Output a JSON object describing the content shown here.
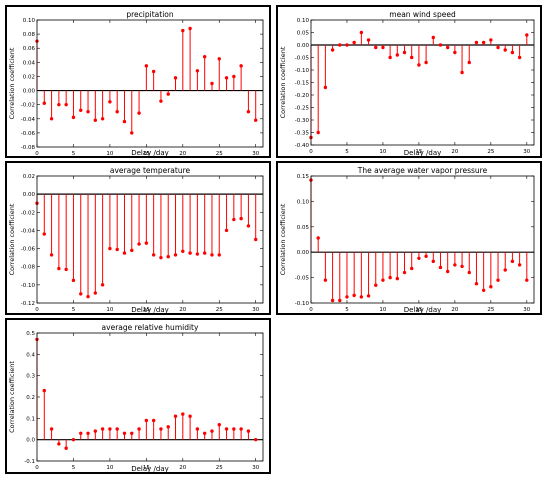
{
  "chart_data": [
    {
      "type": "stem",
      "title": "precipitation",
      "xlabel": "Delay /day",
      "ylabel": "Correlation coefficient",
      "xlim": [
        0,
        31
      ],
      "ylim": [
        -0.08,
        0.1
      ],
      "xticks": [
        0,
        5,
        10,
        15,
        20,
        25,
        30
      ],
      "yticks": [
        -0.08,
        -0.06,
        -0.04,
        -0.02,
        0.0,
        0.02,
        0.04,
        0.06,
        0.08,
        0.1
      ],
      "ytick_labels": [
        "-0.08",
        "-0.06",
        "-0.04",
        "-0.02",
        "0.00",
        "0.02",
        "0.04",
        "0.06",
        "0.08",
        "0.10"
      ],
      "x": [
        0,
        1,
        2,
        3,
        4,
        5,
        6,
        7,
        8,
        9,
        10,
        11,
        12,
        13,
        14,
        15,
        16,
        17,
        18,
        19,
        20,
        21,
        22,
        23,
        24,
        25,
        26,
        27,
        28,
        29,
        30
      ],
      "values": [
        0.07,
        -0.018,
        -0.04,
        -0.02,
        -0.02,
        -0.038,
        -0.028,
        -0.03,
        -0.042,
        -0.04,
        -0.016,
        -0.03,
        -0.044,
        -0.06,
        -0.032,
        0.035,
        0.027,
        -0.015,
        -0.005,
        0.018,
        0.085,
        0.088,
        0.028,
        0.048,
        0.01,
        0.045,
        0.018,
        0.02,
        0.035,
        -0.03,
        -0.042
      ],
      "color": "#ff0000"
    },
    {
      "type": "stem",
      "title": "mean wind speed",
      "xlabel": "Delay /day",
      "ylabel": "Correlation coefficient",
      "xlim": [
        0,
        31
      ],
      "ylim": [
        -0.4,
        0.1
      ],
      "xticks": [
        0,
        5,
        10,
        15,
        20,
        25,
        30
      ],
      "yticks": [
        -0.4,
        -0.35,
        -0.3,
        -0.25,
        -0.2,
        -0.15,
        -0.1,
        -0.05,
        0.0,
        0.05,
        0.1
      ],
      "ytick_labels": [
        "-0.40",
        "-0.35",
        "-0.30",
        "-0.25",
        "-0.20",
        "-0.15",
        "-0.10",
        "-0.05",
        "0.00",
        "0.05",
        "0.10"
      ],
      "x": [
        0,
        1,
        2,
        3,
        4,
        5,
        6,
        7,
        8,
        9,
        10,
        11,
        12,
        13,
        14,
        15,
        16,
        17,
        18,
        19,
        20,
        21,
        22,
        23,
        24,
        25,
        26,
        27,
        28,
        29,
        30
      ],
      "values": [
        -0.37,
        -0.35,
        -0.17,
        -0.02,
        0.0,
        0.0,
        0.01,
        0.05,
        0.02,
        -0.01,
        -0.01,
        -0.05,
        -0.04,
        -0.03,
        -0.05,
        -0.08,
        -0.07,
        0.03,
        0.0,
        -0.01,
        -0.03,
        -0.11,
        -0.07,
        0.01,
        0.01,
        0.02,
        -0.01,
        -0.02,
        -0.03,
        -0.05,
        0.04
      ],
      "color": "#ff0000"
    },
    {
      "type": "stem",
      "title": "average temperature",
      "xlabel": "Delay /day",
      "ylabel": "Correlation coefficient",
      "xlim": [
        0,
        31
      ],
      "ylim": [
        -0.12,
        0.02
      ],
      "xticks": [
        0,
        5,
        10,
        15,
        20,
        25,
        30
      ],
      "yticks": [
        -0.12,
        -0.1,
        -0.08,
        -0.06,
        -0.04,
        -0.02,
        0.0,
        0.02
      ],
      "ytick_labels": [
        "-0.12",
        "-0.10",
        "-0.08",
        "-0.06",
        "-0.04",
        "-0.02",
        "0.00",
        "0.02"
      ],
      "x": [
        0,
        1,
        2,
        3,
        4,
        5,
        6,
        7,
        8,
        9,
        10,
        11,
        12,
        13,
        14,
        15,
        16,
        17,
        18,
        19,
        20,
        21,
        22,
        23,
        24,
        25,
        26,
        27,
        28,
        29,
        30
      ],
      "values": [
        -0.01,
        -0.044,
        -0.067,
        -0.082,
        -0.083,
        -0.095,
        -0.11,
        -0.113,
        -0.109,
        -0.1,
        -0.06,
        -0.061,
        -0.065,
        -0.062,
        -0.055,
        -0.054,
        -0.067,
        -0.07,
        -0.069,
        -0.067,
        -0.063,
        -0.065,
        -0.066,
        -0.065,
        -0.067,
        -0.067,
        -0.04,
        -0.028,
        -0.027,
        -0.035,
        -0.05
      ],
      "color": "#ff0000"
    },
    {
      "type": "stem",
      "title": "The average water vapor pressure",
      "xlabel": "Delay /day",
      "ylabel": "Correlation coefficient",
      "xlim": [
        0,
        31
      ],
      "ylim": [
        -0.1,
        0.15
      ],
      "xticks": [
        0,
        5,
        10,
        15,
        20,
        25,
        30
      ],
      "yticks": [
        -0.1,
        -0.05,
        0.0,
        0.05,
        0.1,
        0.15
      ],
      "ytick_labels": [
        "-0.10",
        "-0.05",
        "0.00",
        "0.05",
        "0.10",
        "0.15"
      ],
      "x": [
        0,
        1,
        2,
        3,
        4,
        5,
        6,
        7,
        8,
        9,
        10,
        11,
        12,
        13,
        14,
        15,
        16,
        17,
        18,
        19,
        20,
        21,
        22,
        23,
        24,
        25,
        26,
        27,
        28,
        29,
        30
      ],
      "values": [
        0.142,
        0.028,
        -0.055,
        -0.095,
        -0.095,
        -0.088,
        -0.085,
        -0.088,
        -0.086,
        -0.065,
        -0.055,
        -0.05,
        -0.052,
        -0.04,
        -0.032,
        -0.012,
        -0.008,
        -0.018,
        -0.03,
        -0.038,
        -0.025,
        -0.028,
        -0.04,
        -0.062,
        -0.075,
        -0.068,
        -0.055,
        -0.035,
        -0.018,
        -0.025,
        -0.055
      ],
      "color": "#ff0000"
    },
    {
      "type": "stem",
      "title": "average relative humidity",
      "xlabel": "Delay /day",
      "ylabel": "Correlation coefficient",
      "xlim": [
        0,
        31
      ],
      "ylim": [
        -0.1,
        0.5
      ],
      "xticks": [
        0,
        5,
        10,
        15,
        20,
        25,
        30
      ],
      "yticks": [
        -0.1,
        0.0,
        0.1,
        0.2,
        0.3,
        0.4,
        0.5
      ],
      "ytick_labels": [
        "-0.1",
        "0.0",
        "0.1",
        "0.2",
        "0.3",
        "0.4",
        "0.5"
      ],
      "x": [
        0,
        1,
        2,
        3,
        4,
        5,
        6,
        7,
        8,
        9,
        10,
        11,
        12,
        13,
        14,
        15,
        16,
        17,
        18,
        19,
        20,
        21,
        22,
        23,
        24,
        25,
        26,
        27,
        28,
        29,
        30
      ],
      "values": [
        0.47,
        0.23,
        0.05,
        -0.02,
        -0.04,
        0.0,
        0.03,
        0.03,
        0.04,
        0.05,
        0.05,
        0.05,
        0.03,
        0.03,
        0.05,
        0.09,
        0.09,
        0.05,
        0.06,
        0.11,
        0.12,
        0.11,
        0.05,
        0.03,
        0.04,
        0.07,
        0.05,
        0.05,
        0.05,
        0.04,
        0.0
      ],
      "color": "#ff0000"
    }
  ]
}
